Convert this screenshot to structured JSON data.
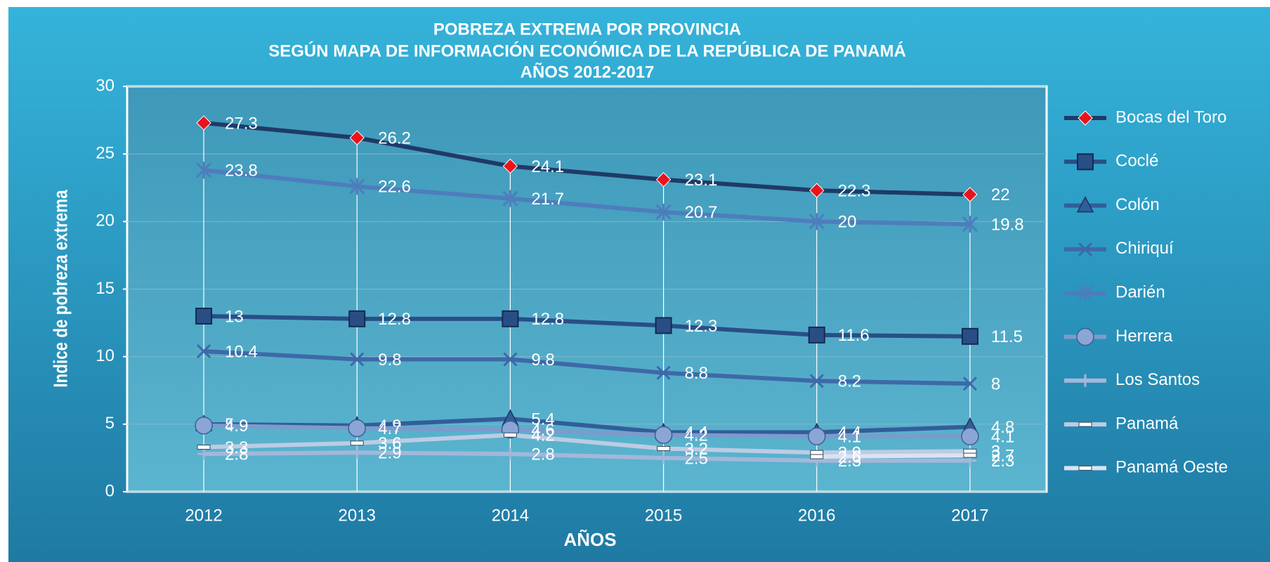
{
  "chart_data": {
    "type": "line",
    "title": [
      "POBREZA EXTREMA POR PROVINCIA",
      "SEGÚN MAPA DE INFORMACIÓN ECONÓMICA DE LA REPÚBLICA DE PANAMÁ",
      "AÑOS 2012-2017"
    ],
    "x_label": "AÑOS",
    "y_label": "Indice de pobreza extrema",
    "categories": [
      "2012",
      "2013",
      "2014",
      "2015",
      "2016",
      "2017"
    ],
    "ylim": [
      0,
      30
    ],
    "yticks": [
      0,
      5,
      10,
      15,
      20,
      25,
      30
    ],
    "grid": true,
    "legend": "right",
    "series": [
      {
        "name": "Bocas del Toro",
        "color": "#1f3a66",
        "marker": "diamond",
        "values": [
          27.3,
          26.2,
          24.1,
          23.1,
          22.3,
          22
        ]
      },
      {
        "name": "Coclé",
        "color": "#294e86",
        "marker": "square",
        "values": [
          13,
          12.8,
          12.8,
          12.3,
          11.6,
          11.5
        ]
      },
      {
        "name": "Colón",
        "color": "#335d9a",
        "marker": "triangle",
        "values": [
          5,
          4.9,
          5.4,
          4.4,
          4.4,
          4.8
        ]
      },
      {
        "name": "Chiriquí",
        "color": "#3e69a8",
        "marker": "x",
        "values": [
          10.4,
          9.8,
          9.8,
          8.8,
          8.2,
          8
        ]
      },
      {
        "name": "Darién",
        "color": "#4e7dbc",
        "marker": "star",
        "values": [
          23.8,
          22.6,
          21.7,
          20.7,
          20,
          19.8
        ]
      },
      {
        "name": "Herrera",
        "color": "#7c9bcc",
        "marker": "circle",
        "values": [
          4.9,
          4.7,
          4.6,
          4.2,
          4.1,
          4.1
        ]
      },
      {
        "name": "Los Santos",
        "color": "#a3b7da",
        "marker": "plus",
        "values": [
          2.8,
          2.9,
          2.8,
          2.5,
          2.3,
          2.3
        ]
      },
      {
        "name": "Panamá",
        "color": "#bdcbe4",
        "marker": "dash",
        "values": [
          3.3,
          3.6,
          4.2,
          3.2,
          2.9,
          3
        ]
      },
      {
        "name": "Panamá Oeste",
        "color": "#dbe3f1",
        "marker": "dash",
        "values": [
          null,
          null,
          null,
          null,
          2.6,
          2.7
        ]
      }
    ]
  }
}
